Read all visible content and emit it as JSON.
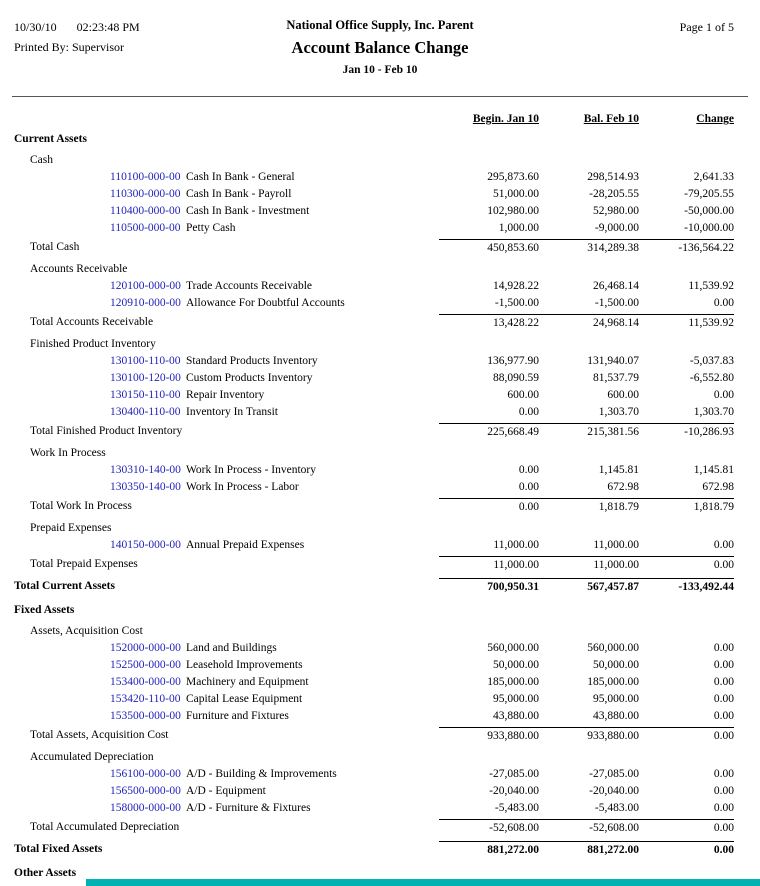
{
  "colors": {
    "account_link": "#2222bb",
    "scrollbar": "#00b2b2",
    "rule": "#555555"
  },
  "header": {
    "date": "10/30/10",
    "time": "02:23:48 PM",
    "printed_by": "Printed By: Supervisor",
    "company": "National Office Supply, Inc. Parent",
    "title": "Account Balance Change",
    "period": "Jan 10 - Feb 10",
    "page": "Page 1 of 5"
  },
  "columns": {
    "begin": "Begin. Jan 10",
    "bal": "Bal. Feb 10",
    "change": "Change"
  },
  "sections": [
    {
      "name": "Current Assets",
      "groups": [
        {
          "name": "Cash",
          "rows": [
            {
              "account": "110100-000-00",
              "desc": "Cash In Bank - General",
              "values": [
                "295,873.60",
                "298,514.93",
                "2,641.33"
              ]
            },
            {
              "account": "110300-000-00",
              "desc": "Cash In Bank - Payroll",
              "values": [
                "51,000.00",
                "-28,205.55",
                "-79,205.55"
              ]
            },
            {
              "account": "110400-000-00",
              "desc": "Cash In Bank - Investment",
              "values": [
                "102,980.00",
                "52,980.00",
                "-50,000.00"
              ]
            },
            {
              "account": "110500-000-00",
              "desc": "Petty Cash",
              "values": [
                "1,000.00",
                "-9,000.00",
                "-10,000.00"
              ]
            }
          ],
          "total": {
            "label": "Total Cash",
            "values": [
              "450,853.60",
              "314,289.38",
              "-136,564.22"
            ]
          }
        },
        {
          "name": "Accounts Receivable",
          "rows": [
            {
              "account": "120100-000-00",
              "desc": "Trade Accounts Receivable",
              "values": [
                "14,928.22",
                "26,468.14",
                "11,539.92"
              ]
            },
            {
              "account": "120910-000-00",
              "desc": "Allowance For Doubtful Accounts",
              "values": [
                "-1,500.00",
                "-1,500.00",
                "0.00"
              ]
            }
          ],
          "total": {
            "label": "Total Accounts Receivable",
            "values": [
              "13,428.22",
              "24,968.14",
              "11,539.92"
            ]
          }
        },
        {
          "name": "Finished Product Inventory",
          "rows": [
            {
              "account": "130100-110-00",
              "desc": "Standard Products Inventory",
              "values": [
                "136,977.90",
                "131,940.07",
                "-5,037.83"
              ]
            },
            {
              "account": "130100-120-00",
              "desc": "Custom Products Inventory",
              "values": [
                "88,090.59",
                "81,537.79",
                "-6,552.80"
              ]
            },
            {
              "account": "130150-110-00",
              "desc": "Repair Inventory",
              "values": [
                "600.00",
                "600.00",
                "0.00"
              ]
            },
            {
              "account": "130400-110-00",
              "desc": "Inventory In Transit",
              "values": [
                "0.00",
                "1,303.70",
                "1,303.70"
              ]
            }
          ],
          "total": {
            "label": "Total Finished Product Inventory",
            "values": [
              "225,668.49",
              "215,381.56",
              "-10,286.93"
            ]
          }
        },
        {
          "name": "Work In Process",
          "rows": [
            {
              "account": "130310-140-00",
              "desc": "Work In Process - Inventory",
              "values": [
                "0.00",
                "1,145.81",
                "1,145.81"
              ]
            },
            {
              "account": "130350-140-00",
              "desc": "Work In Process - Labor",
              "values": [
                "0.00",
                "672.98",
                "672.98"
              ]
            }
          ],
          "total": {
            "label": "Total Work In Process",
            "values": [
              "0.00",
              "1,818.79",
              "1,818.79"
            ]
          }
        },
        {
          "name": "Prepaid Expenses",
          "rows": [
            {
              "account": "140150-000-00",
              "desc": "Annual Prepaid Expenses",
              "values": [
                "11,000.00",
                "11,000.00",
                "0.00"
              ]
            }
          ],
          "total": {
            "label": "Total Prepaid Expenses",
            "values": [
              "11,000.00",
              "11,000.00",
              "0.00"
            ]
          }
        }
      ],
      "total": {
        "label": "Total Current Assets",
        "values": [
          "700,950.31",
          "567,457.87",
          "-133,492.44"
        ]
      }
    },
    {
      "name": "Fixed Assets",
      "groups": [
        {
          "name": "Assets, Acquisition Cost",
          "rows": [
            {
              "account": "152000-000-00",
              "desc": "Land and Buildings",
              "values": [
                "560,000.00",
                "560,000.00",
                "0.00"
              ]
            },
            {
              "account": "152500-000-00",
              "desc": "Leasehold Improvements",
              "values": [
                "50,000.00",
                "50,000.00",
                "0.00"
              ]
            },
            {
              "account": "153400-000-00",
              "desc": "Machinery and Equipment",
              "values": [
                "185,000.00",
                "185,000.00",
                "0.00"
              ]
            },
            {
              "account": "153420-110-00",
              "desc": "Capital Lease Equipment",
              "values": [
                "95,000.00",
                "95,000.00",
                "0.00"
              ]
            },
            {
              "account": "153500-000-00",
              "desc": "Furniture and Fixtures",
              "values": [
                "43,880.00",
                "43,880.00",
                "0.00"
              ]
            }
          ],
          "total": {
            "label": "Total Assets, Acquisition Cost",
            "values": [
              "933,880.00",
              "933,880.00",
              "0.00"
            ]
          }
        },
        {
          "name": "Accumulated Depreciation",
          "rows": [
            {
              "account": "156100-000-00",
              "desc": "A/D - Building & Improvements",
              "values": [
                "-27,085.00",
                "-27,085.00",
                "0.00"
              ]
            },
            {
              "account": "156500-000-00",
              "desc": "A/D - Equipment",
              "values": [
                "-20,040.00",
                "-20,040.00",
                "0.00"
              ]
            },
            {
              "account": "158000-000-00",
              "desc": "A/D - Furniture & Fixtures",
              "values": [
                "-5,483.00",
                "-5,483.00",
                "0.00"
              ]
            }
          ],
          "total": {
            "label": "Total Accumulated Depreciation",
            "values": [
              "-52,608.00",
              "-52,608.00",
              "0.00"
            ]
          }
        }
      ],
      "total": {
        "label": "Total Fixed Assets",
        "values": [
          "881,272.00",
          "881,272.00",
          "0.00"
        ]
      }
    },
    {
      "name": "Other Assets",
      "groups": []
    }
  ]
}
